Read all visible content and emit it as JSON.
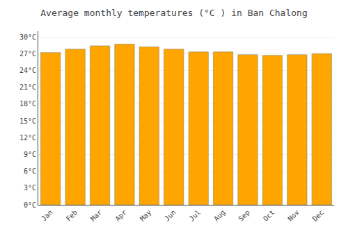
{
  "chart_data": {
    "type": "bar",
    "title": "Average monthly temperatures (°C ) in Ban Chalong",
    "categories": [
      "Jan",
      "Feb",
      "Mar",
      "Apr",
      "May",
      "Jun",
      "Jul",
      "Aug",
      "Sep",
      "Oct",
      "Nov",
      "Dec"
    ],
    "values": [
      27.2,
      27.8,
      28.4,
      28.7,
      28.2,
      27.8,
      27.3,
      27.3,
      26.8,
      26.7,
      26.8,
      27.0
    ],
    "color": "#FFA500",
    "ylim": [
      0,
      31
    ],
    "yticks": [
      {
        "value": 0,
        "label": "0°C"
      },
      {
        "value": 3,
        "label": "3°C"
      },
      {
        "value": 6,
        "label": "6°C"
      },
      {
        "value": 9,
        "label": "9°C"
      },
      {
        "value": 12,
        "label": "12°C"
      },
      {
        "value": 15,
        "label": "15°C"
      },
      {
        "value": 18,
        "label": "18°C"
      },
      {
        "value": 21,
        "label": "21°C"
      },
      {
        "value": 24,
        "label": "24°C"
      },
      {
        "value": 27,
        "label": "27°C"
      },
      {
        "value": 30,
        "label": "30°C"
      }
    ],
    "grid": true
  }
}
